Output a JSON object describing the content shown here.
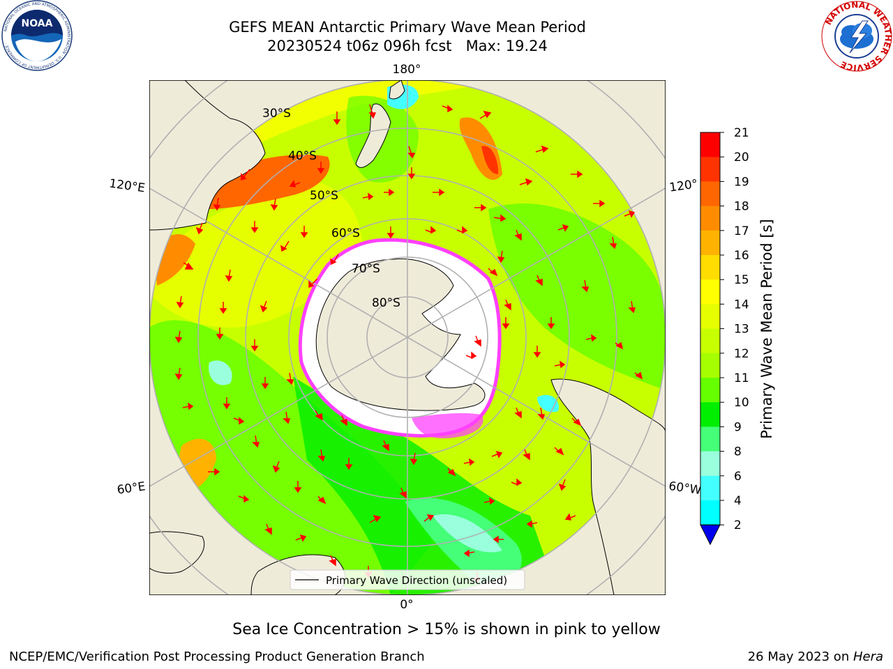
{
  "header": {
    "title_line1": "GEFS MEAN Antarctic Primary Wave Mean Period",
    "title_line2": "20230524 t06z 096h fcst   Max: 19.24"
  },
  "logos": {
    "left": {
      "text": "NOAA",
      "ring_text": "NATIONAL OCEANIC AND ATMOSPHERIC ADMINISTRATION · U.S. DEPARTMENT OF COMMERCE ·",
      "icon": "noaa-logo"
    },
    "right": {
      "ring_text": "NATIONAL WEATHER SERVICE",
      "icon": "nws-logo"
    }
  },
  "map": {
    "longitude_labels": [
      "180°",
      "120°E",
      "120°",
      "60°E",
      "60°W",
      "0°"
    ],
    "latitude_labels": [
      "30°S",
      "40°S",
      "50°S",
      "60°S",
      "70°S",
      "80°S"
    ],
    "legend_label": "Primary Wave Direction (unscaled)",
    "colors": {
      "land": "#efebd9",
      "ice_edge": "#ff40ff",
      "arrow": "#ff0000",
      "grid": "#b0b0b0"
    }
  },
  "colorbar": {
    "label": "Primary Wave Mean Period [s]",
    "ticks": [
      "21",
      "20",
      "19",
      "18",
      "17",
      "16",
      "15",
      "14",
      "13",
      "12",
      "11",
      "10",
      "9",
      "8",
      "6",
      "4",
      "2"
    ],
    "colors": [
      "#ff0000",
      "#ff3300",
      "#ff6600",
      "#ff8c00",
      "#ffb300",
      "#ffdd00",
      "#ffff00",
      "#e6ff00",
      "#c8ff00",
      "#a6ff00",
      "#66ff00",
      "#00ee00",
      "#44ff77",
      "#99ffdd",
      "#44ffff",
      "#00ffff",
      "#0077ff",
      "#0000ee"
    ]
  },
  "notes": {
    "ice": "Sea Ice Concentration > 15% is shown in pink to yellow"
  },
  "footer": {
    "left": "NCEP/EMC/Verification Post Processing Product Generation Branch",
    "right_prefix": "26 May 2023 on ",
    "right_host": "Hera"
  }
}
